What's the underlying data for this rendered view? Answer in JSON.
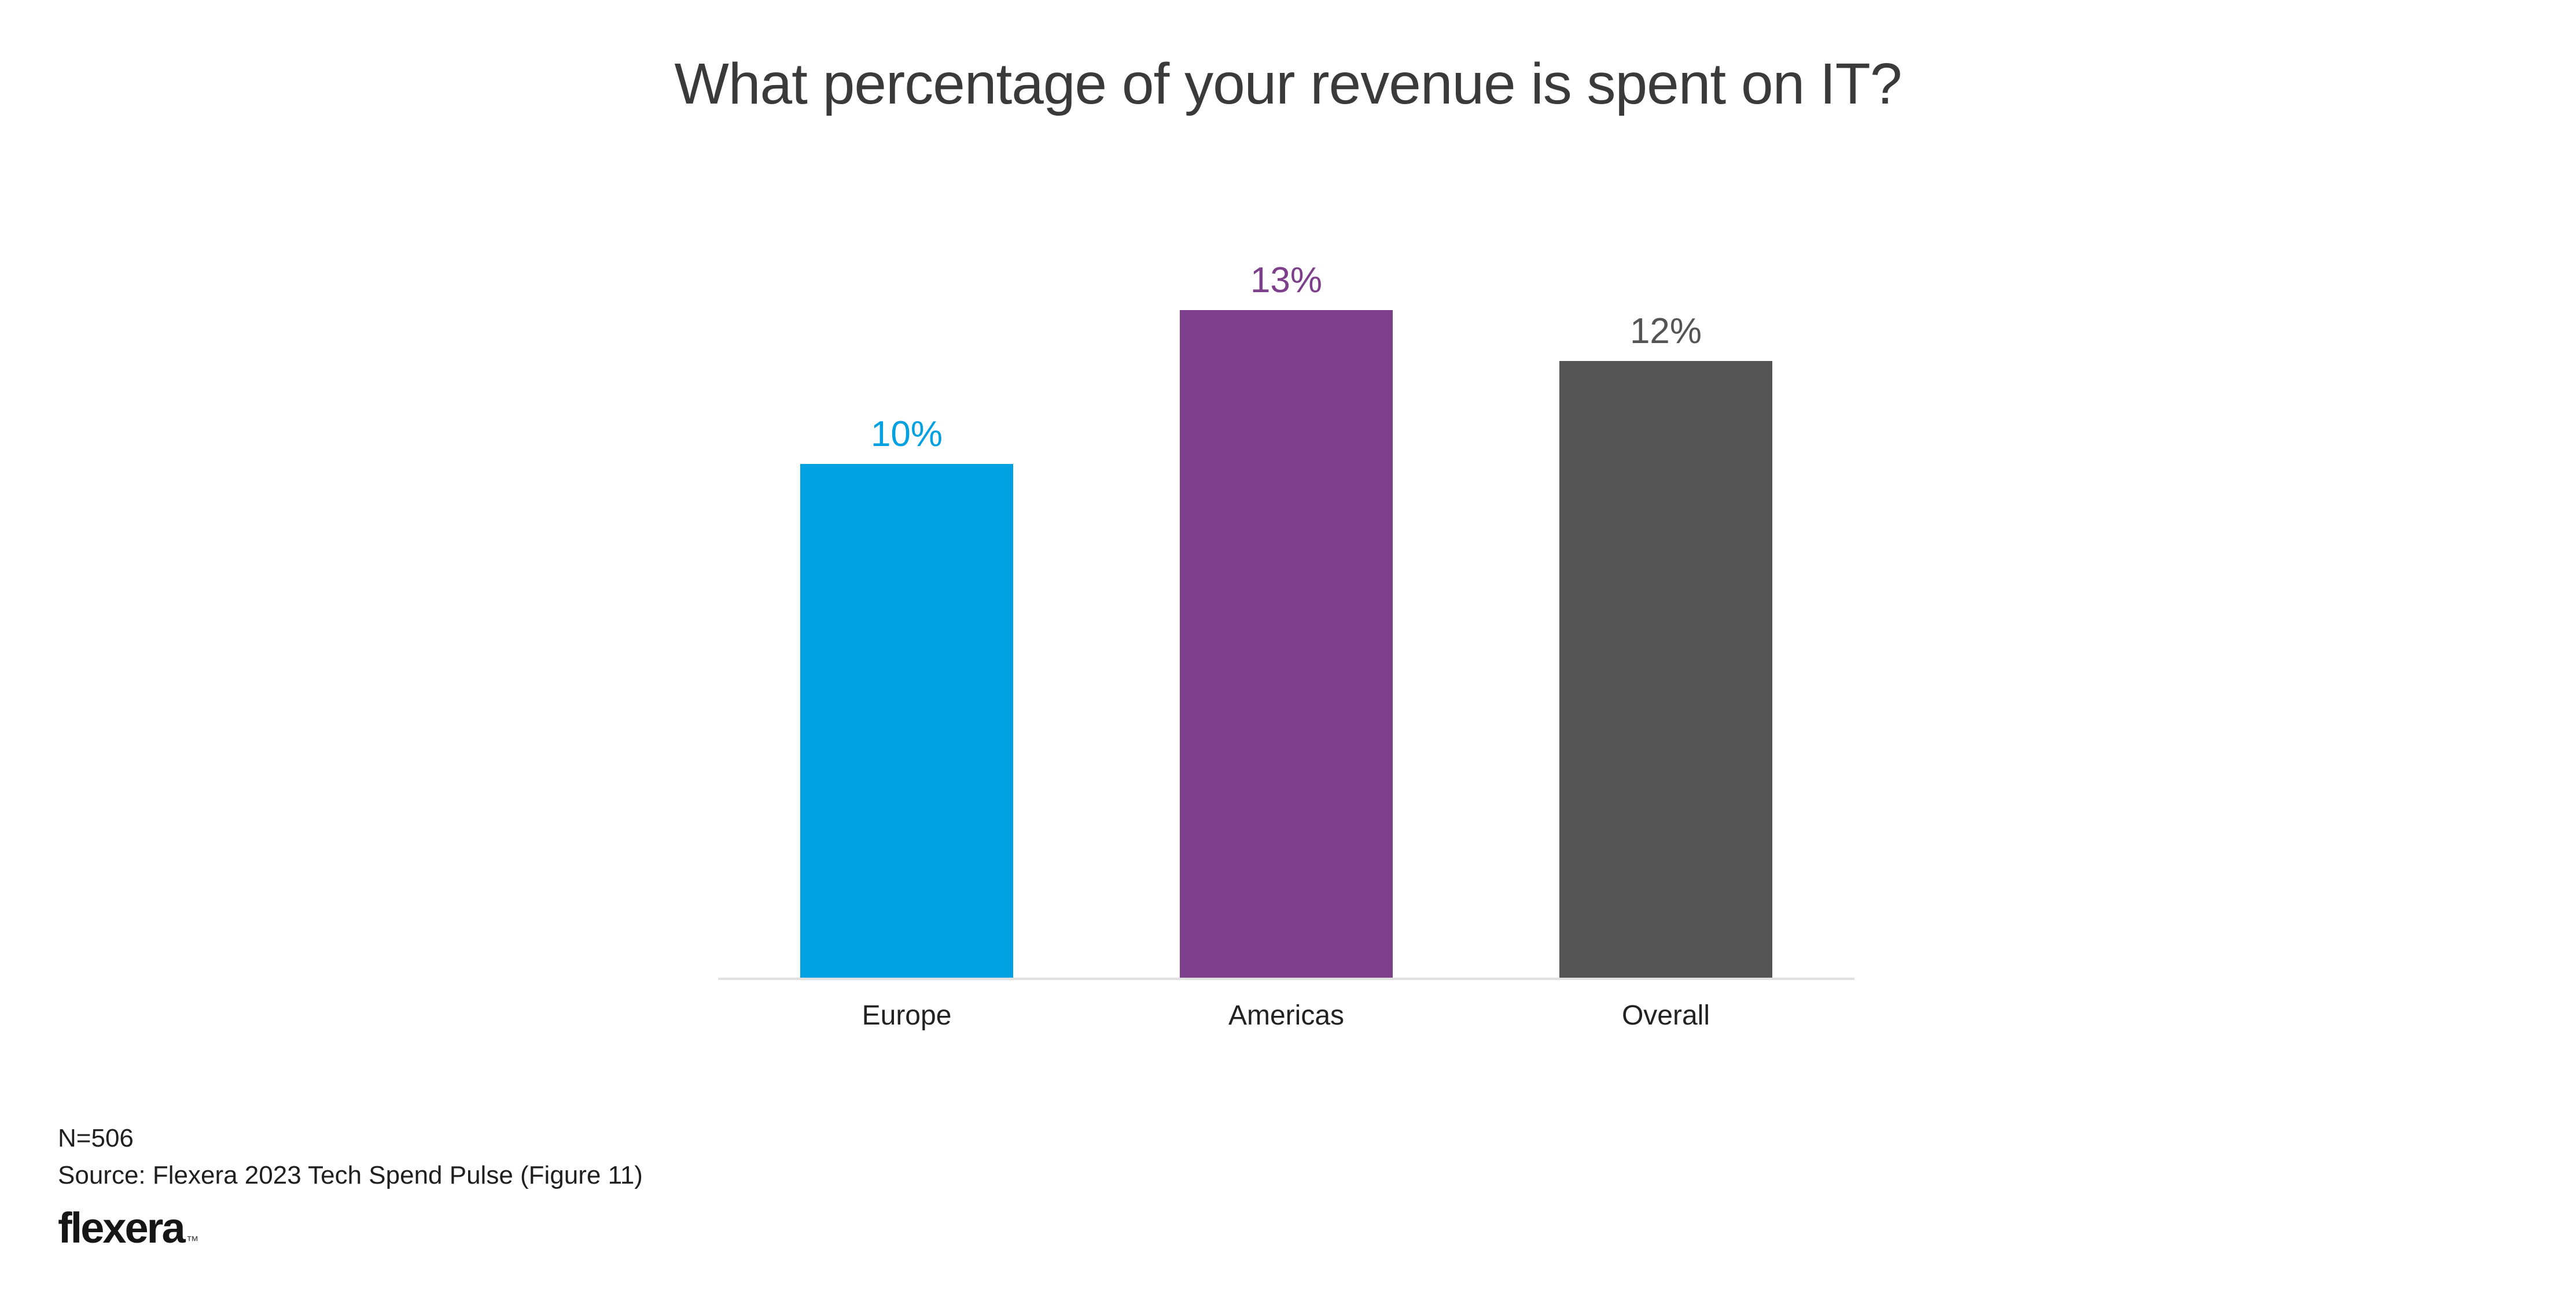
{
  "chart_data": {
    "type": "bar",
    "title": "What percentage of your revenue is spent on IT?",
    "categories": [
      "Europe",
      "Americas",
      "Overall"
    ],
    "values": [
      10,
      13,
      12
    ],
    "value_labels": [
      "10%",
      "13%",
      "12%"
    ],
    "bar_colors": [
      "#00A1E0",
      "#7D3E8C",
      "#545454"
    ],
    "xlabel": "",
    "ylabel": "",
    "ylim": [
      0,
      15
    ],
    "grid": false,
    "legend": false,
    "data_label_position": "above-bar",
    "axis_line_color": "#E1E1E1",
    "title_color": "#3A3A3A"
  },
  "footer": {
    "n_text": "N=506",
    "source_text": "Source: Flexera 2023 Tech Spend Pulse (Figure 11)",
    "logo_text": "flexera",
    "logo_tm": "™"
  }
}
